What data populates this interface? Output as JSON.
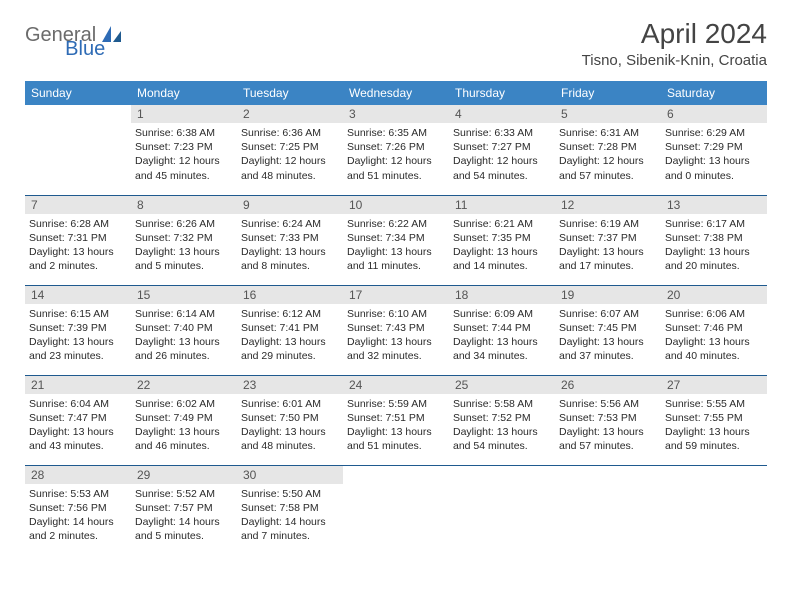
{
  "logo": {
    "part1": "General",
    "part2": "Blue"
  },
  "title": "April 2024",
  "location": "Tisno, Sibenik-Knin, Croatia",
  "weekdays": [
    "Sunday",
    "Monday",
    "Tuesday",
    "Wednesday",
    "Thursday",
    "Friday",
    "Saturday"
  ],
  "colors": {
    "header_bg": "#3b84c4",
    "header_text": "#ffffff",
    "daynum_bg": "#e6e6e6",
    "rule": "#1f5a8f",
    "logo_gray": "#6b6b6b",
    "logo_blue": "#2e6bb5"
  },
  "grid_start_offset": 1,
  "days": [
    {
      "n": 1,
      "sunrise": "6:38 AM",
      "sunset": "7:23 PM",
      "daylight": "12 hours and 45 minutes."
    },
    {
      "n": 2,
      "sunrise": "6:36 AM",
      "sunset": "7:25 PM",
      "daylight": "12 hours and 48 minutes."
    },
    {
      "n": 3,
      "sunrise": "6:35 AM",
      "sunset": "7:26 PM",
      "daylight": "12 hours and 51 minutes."
    },
    {
      "n": 4,
      "sunrise": "6:33 AM",
      "sunset": "7:27 PM",
      "daylight": "12 hours and 54 minutes."
    },
    {
      "n": 5,
      "sunrise": "6:31 AM",
      "sunset": "7:28 PM",
      "daylight": "12 hours and 57 minutes."
    },
    {
      "n": 6,
      "sunrise": "6:29 AM",
      "sunset": "7:29 PM",
      "daylight": "13 hours and 0 minutes."
    },
    {
      "n": 7,
      "sunrise": "6:28 AM",
      "sunset": "7:31 PM",
      "daylight": "13 hours and 2 minutes."
    },
    {
      "n": 8,
      "sunrise": "6:26 AM",
      "sunset": "7:32 PM",
      "daylight": "13 hours and 5 minutes."
    },
    {
      "n": 9,
      "sunrise": "6:24 AM",
      "sunset": "7:33 PM",
      "daylight": "13 hours and 8 minutes."
    },
    {
      "n": 10,
      "sunrise": "6:22 AM",
      "sunset": "7:34 PM",
      "daylight": "13 hours and 11 minutes."
    },
    {
      "n": 11,
      "sunrise": "6:21 AM",
      "sunset": "7:35 PM",
      "daylight": "13 hours and 14 minutes."
    },
    {
      "n": 12,
      "sunrise": "6:19 AM",
      "sunset": "7:37 PM",
      "daylight": "13 hours and 17 minutes."
    },
    {
      "n": 13,
      "sunrise": "6:17 AM",
      "sunset": "7:38 PM",
      "daylight": "13 hours and 20 minutes."
    },
    {
      "n": 14,
      "sunrise": "6:15 AM",
      "sunset": "7:39 PM",
      "daylight": "13 hours and 23 minutes."
    },
    {
      "n": 15,
      "sunrise": "6:14 AM",
      "sunset": "7:40 PM",
      "daylight": "13 hours and 26 minutes."
    },
    {
      "n": 16,
      "sunrise": "6:12 AM",
      "sunset": "7:41 PM",
      "daylight": "13 hours and 29 minutes."
    },
    {
      "n": 17,
      "sunrise": "6:10 AM",
      "sunset": "7:43 PM",
      "daylight": "13 hours and 32 minutes."
    },
    {
      "n": 18,
      "sunrise": "6:09 AM",
      "sunset": "7:44 PM",
      "daylight": "13 hours and 34 minutes."
    },
    {
      "n": 19,
      "sunrise": "6:07 AM",
      "sunset": "7:45 PM",
      "daylight": "13 hours and 37 minutes."
    },
    {
      "n": 20,
      "sunrise": "6:06 AM",
      "sunset": "7:46 PM",
      "daylight": "13 hours and 40 minutes."
    },
    {
      "n": 21,
      "sunrise": "6:04 AM",
      "sunset": "7:47 PM",
      "daylight": "13 hours and 43 minutes."
    },
    {
      "n": 22,
      "sunrise": "6:02 AM",
      "sunset": "7:49 PM",
      "daylight": "13 hours and 46 minutes."
    },
    {
      "n": 23,
      "sunrise": "6:01 AM",
      "sunset": "7:50 PM",
      "daylight": "13 hours and 48 minutes."
    },
    {
      "n": 24,
      "sunrise": "5:59 AM",
      "sunset": "7:51 PM",
      "daylight": "13 hours and 51 minutes."
    },
    {
      "n": 25,
      "sunrise": "5:58 AM",
      "sunset": "7:52 PM",
      "daylight": "13 hours and 54 minutes."
    },
    {
      "n": 26,
      "sunrise": "5:56 AM",
      "sunset": "7:53 PM",
      "daylight": "13 hours and 57 minutes."
    },
    {
      "n": 27,
      "sunrise": "5:55 AM",
      "sunset": "7:55 PM",
      "daylight": "13 hours and 59 minutes."
    },
    {
      "n": 28,
      "sunrise": "5:53 AM",
      "sunset": "7:56 PM",
      "daylight": "14 hours and 2 minutes."
    },
    {
      "n": 29,
      "sunrise": "5:52 AM",
      "sunset": "7:57 PM",
      "daylight": "14 hours and 5 minutes."
    },
    {
      "n": 30,
      "sunrise": "5:50 AM",
      "sunset": "7:58 PM",
      "daylight": "14 hours and 7 minutes."
    }
  ]
}
